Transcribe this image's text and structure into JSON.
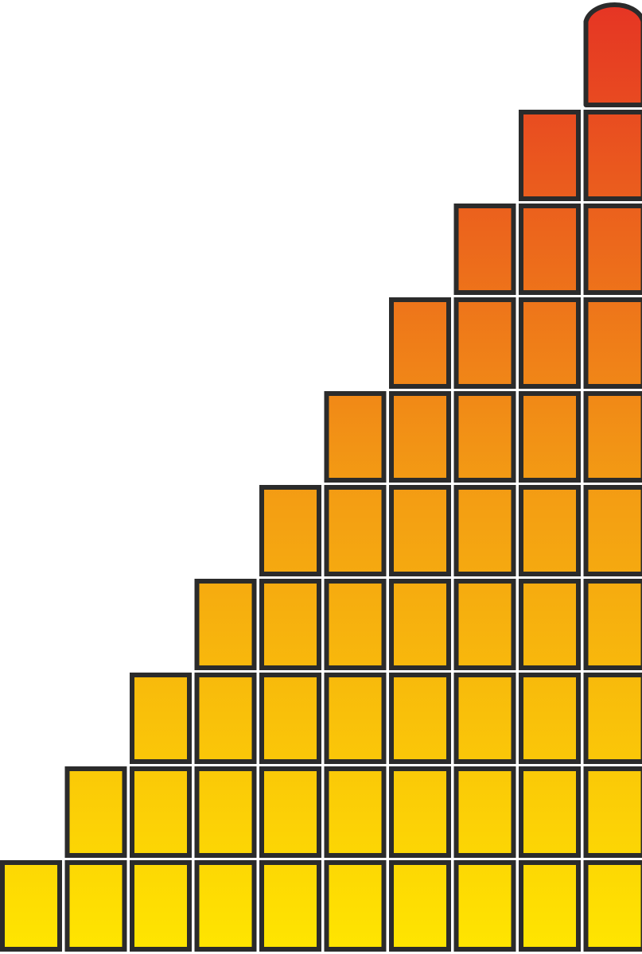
{
  "graphic": {
    "kind": "block-staircase-gauge",
    "columns": 10,
    "column_heights": [
      1,
      2,
      3,
      4,
      5,
      6,
      7,
      8,
      9,
      10
    ],
    "top_column_has_rounded_cap": true,
    "gradient_colors": {
      "bottom": "#ffe600",
      "middle": "#f39a14",
      "top": "#e53424"
    },
    "block_outline_color": "#2b2b2b",
    "background_color": "#ffffff"
  }
}
